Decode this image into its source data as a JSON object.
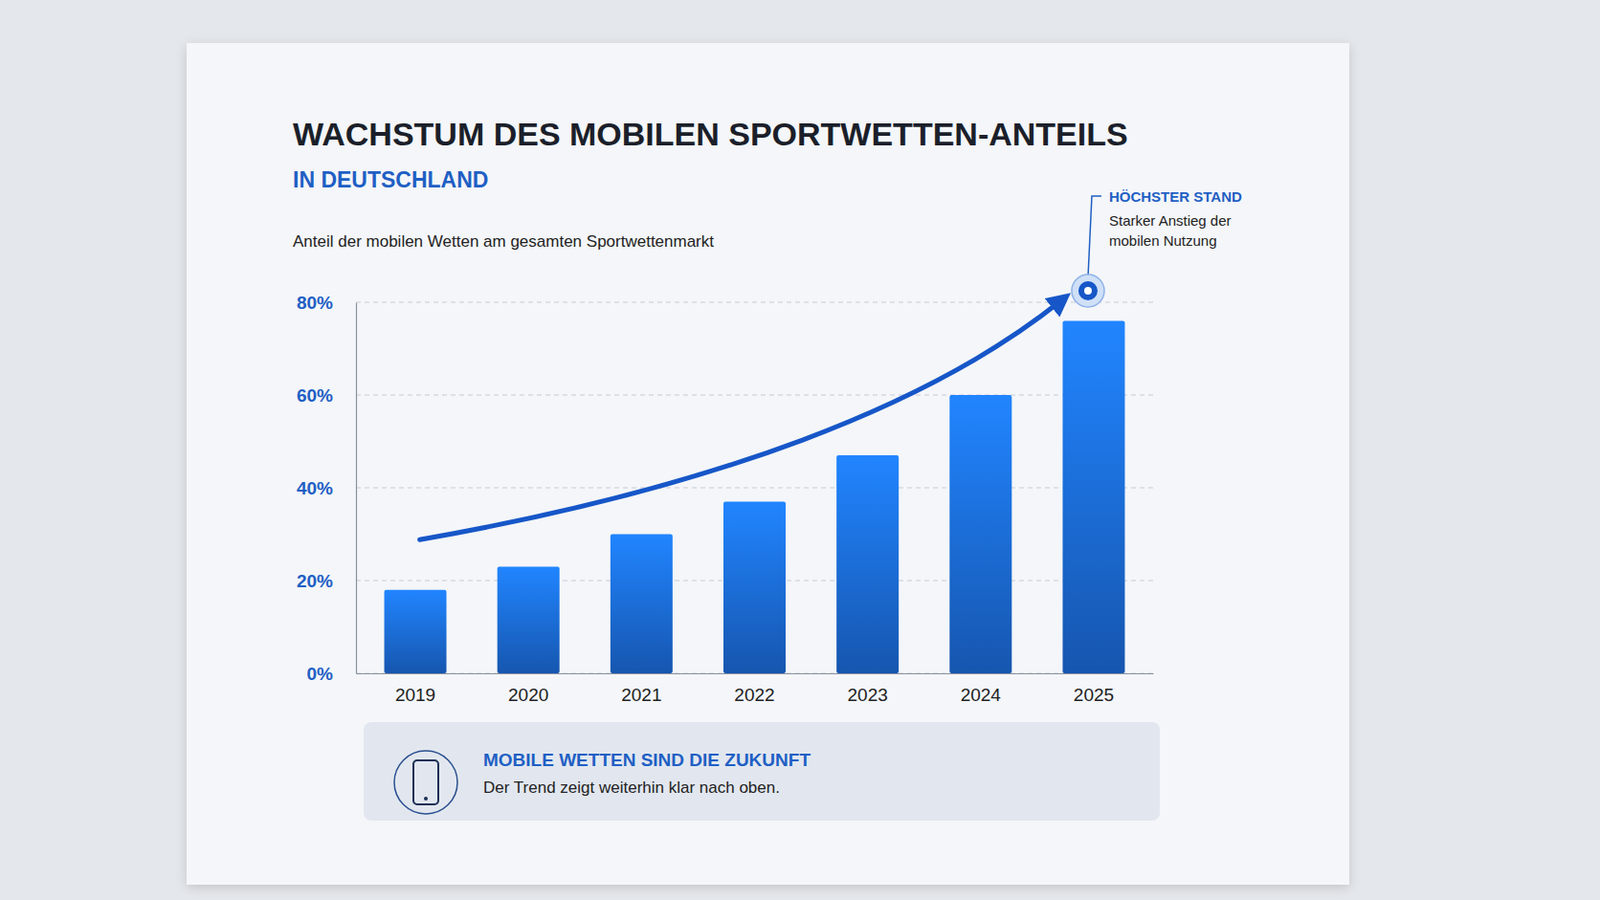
{
  "chart_data": {
    "type": "bar",
    "title": "WACHSTUM DES MOBILEN SPORTWETTEN-ANTEILS",
    "subtitle": "IN DEUTSCHLAND",
    "y_label": "Anteil der mobilen Wetten am gesamten Sportwettenmarkt",
    "categories": [
      "2019",
      "2020",
      "2021",
      "2022",
      "2023",
      "2024",
      "2025"
    ],
    "values": [
      18,
      23,
      30,
      37,
      47,
      60,
      76
    ],
    "color": "#1c6fe0",
    "ylim": [
      0,
      80
    ],
    "yticks": [
      {
        "value": 0,
        "label": "0%"
      },
      {
        "value": 20,
        "label": "20%"
      },
      {
        "value": 40,
        "label": "40%"
      },
      {
        "value": 60,
        "label": "60%"
      },
      {
        "value": 80,
        "label": "80%"
      }
    ],
    "grid": true,
    "annotations": [
      {
        "title": "HÖCHSTER STAND",
        "text": "Starker Anstieg der mobilen Nutzung"
      },
      {
        "title": "MOBILE WETTEN SIND DIE ZUKUNFT",
        "text": "Der Trend zeigt weiterhin klar nach oben."
      }
    ]
  }
}
